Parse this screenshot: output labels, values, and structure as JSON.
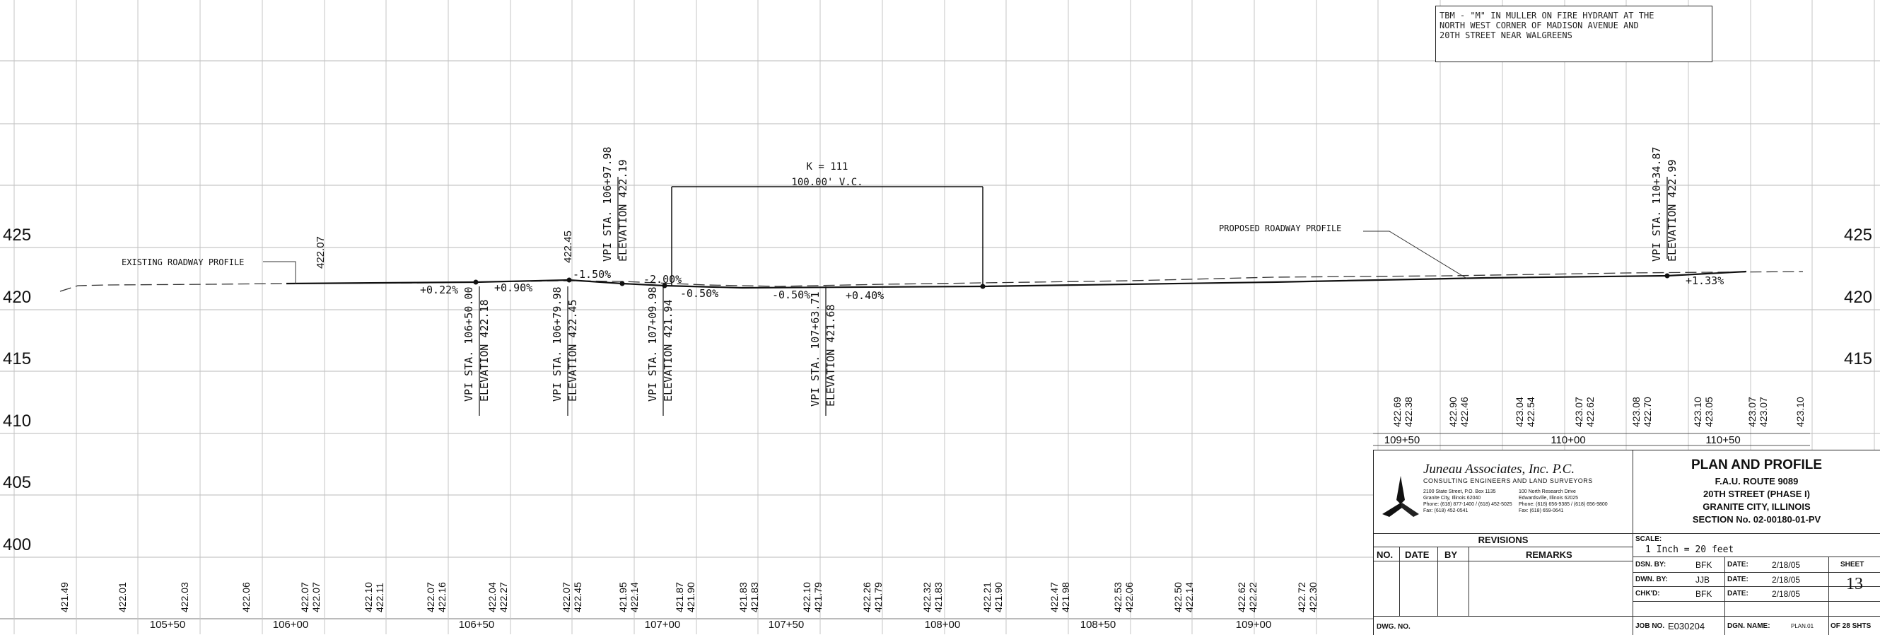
{
  "tbm_note": "TBM - \"M\" IN MULLER ON FIRE HYDRANT AT THE\nNORTH WEST CORNER OF MADISON AVENUE AND\n20TH STREET NEAR WALGREENS",
  "elevation_labels": [
    "425",
    "420",
    "415",
    "410",
    "405",
    "400"
  ],
  "station_labels": [
    "105+50",
    "106+00",
    "106+50",
    "107+00",
    "107+50",
    "108+00",
    "108+50",
    "109+00"
  ],
  "upper_station_labels": [
    "109+50",
    "110+00",
    "110+50"
  ],
  "bottom_elevation_pairs": [
    [
      "421.49",
      ""
    ],
    [
      "422.01",
      ""
    ],
    [
      "422.03",
      ""
    ],
    [
      "422.06",
      ""
    ],
    [
      "422.07",
      "422.07"
    ],
    [
      "422.10",
      "422.11"
    ],
    [
      "422.07",
      "422.16"
    ],
    [
      "422.04",
      "422.27"
    ],
    [
      "422.07",
      "422.45"
    ],
    [
      "421.95",
      "422.14"
    ],
    [
      "421.87",
      "421.90"
    ],
    [
      "421.83",
      "421.83"
    ],
    [
      "422.10",
      "421.79"
    ],
    [
      "422.26",
      "421.79"
    ],
    [
      "422.32",
      "421.83"
    ],
    [
      "422.21",
      "421.90"
    ],
    [
      "422.47",
      "421.98"
    ],
    [
      "422.53",
      "422.06"
    ],
    [
      "422.50",
      "422.14"
    ],
    [
      "422.62",
      "422.22"
    ],
    [
      "422.72",
      "422.30"
    ]
  ],
  "upper_elevation_pairs": [
    [
      "422.69",
      "422.38"
    ],
    [
      "422.90",
      "422.46"
    ],
    [
      "423.04",
      "422.54"
    ],
    [
      "423.07",
      "422.62"
    ],
    [
      "423.08",
      "422.70"
    ],
    [
      "423.10",
      "423.05"
    ],
    [
      "423.07",
      "423.07"
    ],
    [
      "423.10",
      ""
    ]
  ],
  "profile_labels": {
    "existing": "EXISTING ROADWAY PROFILE",
    "proposed": "PROPOSED ROADWAY PROFILE",
    "k_value": "K = 111",
    "vertical_curve": "100.00'  V.C."
  },
  "grades": [
    "+0.22%",
    "+0.90%",
    "-1.50%",
    "-2.00%",
    "-0.50%",
    "-0.50%",
    "+0.40%",
    "+1.33%"
  ],
  "spot_elevations": [
    "422.07",
    "422.45"
  ],
  "vpi_labels": [
    {
      "sta": "VPI STA. 106+50.00",
      "elev": "ELEVATION 422.18"
    },
    {
      "sta": "VPI STA. 106+79.98",
      "elev": "ELEVATION 422.45"
    },
    {
      "sta": "VPI STA. 106+97.98",
      "elev": "ELEVATION 422.19"
    },
    {
      "sta": "VPI STA. 107+09.98",
      "elev": "ELEVATION 421.94"
    },
    {
      "sta": "VPI STA. 107+63.71",
      "elev": "ELEVATION 421.68"
    },
    {
      "sta": "VPI STA. 110+34.87",
      "elev": "ELEVATION 422.99"
    }
  ],
  "title_block": {
    "firm_name": "Juneau Associates, Inc. P.C.",
    "firm_subtitle": "CONSULTING ENGINEERS AND LAND SURVEYORS",
    "address_1": "2100 State Street, P.O. Box 1135\nGranite City, Illinois 62040\nPhone: (618) 877-1400 / (618) 452-5025\nFax: (618) 452-0541",
    "address_2": "100 North Research Drive\nEdwardsville, Illinois 62025\nPhone: (618) 656-9385 / (618) 656-9800\nFax: (618) 659-0641",
    "title": "PLAN AND PROFILE",
    "route": "F.A.U. ROUTE 9089",
    "street": "20TH STREET (PHASE I)",
    "city": "GRANITE CITY, ILLINOIS",
    "section": "SECTION No. 02-00180-01-PV",
    "revisions_heading": "REVISIONS",
    "col_no": "NO.",
    "col_date": "DATE",
    "col_by": "BY",
    "col_remarks": "REMARKS",
    "scale_label": "SCALE:",
    "scale_value": "1 Inch = 20 feet",
    "dsn_by_label": "DSN. BY:",
    "dsn_by": "BFK",
    "dwn_by_label": "DWN. BY:",
    "dwn_by": "JJB",
    "chkd_label": "CHK'D:",
    "chkd_by": "BFK",
    "date_label": "DATE:",
    "dsn_date": "2/18/05",
    "dwn_date": "2/18/05",
    "chk_date": "2/18/05",
    "sheet_label": "SHEET",
    "sheet_no": "13",
    "dwg_no_label": "DWG. NO.",
    "job_no_label": "JOB NO.",
    "job_no": "E030204",
    "dgn_name_label": "DGN. NAME:",
    "dgn_name": "PLAN.01",
    "of_sheets": "OF 28 SHTS"
  }
}
